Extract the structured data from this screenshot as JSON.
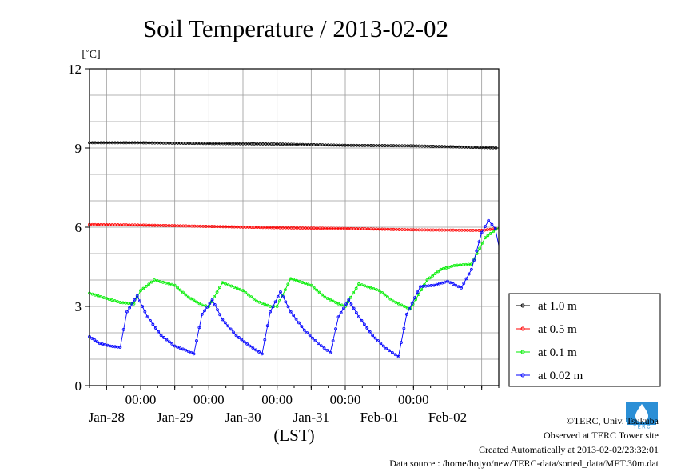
{
  "chart_data": {
    "type": "line",
    "title": "Soil Temperature / 2013-02-02",
    "ylabel": "[˚C]",
    "xlabel": "(LST)",
    "ylim": [
      0,
      12
    ],
    "yticks": [
      0,
      3,
      6,
      9,
      12
    ],
    "xlim_days": [
      -0.75,
      5.25
    ],
    "time_ticks": [
      "00:00",
      "00:00",
      "00:00",
      "00:00",
      "00:00"
    ],
    "date_ticks": [
      "Jan-28",
      "Jan-29",
      "Jan-30",
      "Jan-31",
      "Feb-01",
      "Feb-02"
    ],
    "grid": true,
    "legend_position": "right",
    "series": [
      {
        "name": "at 1.0 m",
        "color": "#000000",
        "x": [
          -0.75,
          0.0,
          1.0,
          2.0,
          3.0,
          4.0,
          5.0,
          5.25
        ],
        "y": [
          9.2,
          9.2,
          9.17,
          9.15,
          9.1,
          9.08,
          9.02,
          9.0
        ]
      },
      {
        "name": "at 0.5 m",
        "color": "#ff0000",
        "x": [
          -0.75,
          0.0,
          1.0,
          2.0,
          3.0,
          4.0,
          5.0,
          5.25
        ],
        "y": [
          6.1,
          6.08,
          6.03,
          5.98,
          5.95,
          5.9,
          5.88,
          5.95
        ]
      },
      {
        "name": "at 0.1 m",
        "color": "#00ee00",
        "x": [
          -0.75,
          -0.5,
          -0.3,
          -0.1,
          0.0,
          0.2,
          0.5,
          0.7,
          0.9,
          1.0,
          1.2,
          1.5,
          1.7,
          1.9,
          2.0,
          2.2,
          2.5,
          2.7,
          2.9,
          3.0,
          3.2,
          3.5,
          3.7,
          3.95,
          4.2,
          4.4,
          4.6,
          4.85,
          5.05,
          5.25
        ],
        "y": [
          3.5,
          3.3,
          3.15,
          3.1,
          3.6,
          4.0,
          3.8,
          3.35,
          3.05,
          3.0,
          3.9,
          3.6,
          3.2,
          3.0,
          3.0,
          4.05,
          3.8,
          3.35,
          3.1,
          3.0,
          3.85,
          3.6,
          3.2,
          2.9,
          4.0,
          4.4,
          4.55,
          4.6,
          5.6,
          6.0
        ]
      },
      {
        "name": "at 0.02 m",
        "color": "#0000ff",
        "x": [
          -0.75,
          -0.6,
          -0.45,
          -0.3,
          -0.2,
          -0.05,
          0.1,
          0.3,
          0.5,
          0.7,
          0.78,
          0.9,
          1.05,
          1.2,
          1.4,
          1.6,
          1.78,
          1.9,
          2.05,
          2.2,
          2.4,
          2.6,
          2.78,
          2.9,
          3.05,
          3.2,
          3.4,
          3.6,
          3.78,
          3.9,
          4.1,
          4.3,
          4.5,
          4.7,
          4.85,
          5.0,
          5.1,
          5.2,
          5.25
        ],
        "y": [
          1.85,
          1.6,
          1.5,
          1.45,
          2.8,
          3.4,
          2.6,
          1.9,
          1.5,
          1.3,
          1.2,
          2.7,
          3.25,
          2.5,
          1.9,
          1.5,
          1.2,
          2.8,
          3.55,
          2.8,
          2.1,
          1.6,
          1.25,
          2.6,
          3.25,
          2.6,
          1.9,
          1.4,
          1.1,
          2.7,
          3.75,
          3.8,
          3.95,
          3.7,
          4.4,
          5.8,
          6.25,
          5.95,
          5.3
        ]
      }
    ]
  },
  "credits": {
    "copyright": "©TERC, Univ. Tsukuba",
    "site": "Observed at TERC Tower site",
    "created": "Created Automatically at 2013-02-02/23:32:01",
    "source": "Data source : /home/hojyo/new/TERC-data/sorted_data/MET.30m.dat"
  }
}
